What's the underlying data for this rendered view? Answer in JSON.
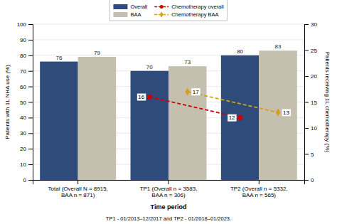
{
  "chart_data": {
    "type": "bar",
    "categories": [
      "Total (Overall N = 8915,\nBAA n = 871)",
      "TP1 (Overall n = 3583,\nBAA n = 306)",
      "TP2 (Overall n = 5332,\nBAA n = 565)"
    ],
    "xlabel": "Time period",
    "ylabel": "Patients with 1L NHA use (%)",
    "y2label": "Patients receiving 1L chemotherapy (%)",
    "ylim": [
      0,
      100
    ],
    "yticks": [
      0,
      10,
      20,
      30,
      40,
      50,
      60,
      70,
      80,
      90,
      100
    ],
    "y2lim": [
      0,
      30
    ],
    "y2ticks": [
      0,
      5,
      10,
      15,
      20,
      25,
      30
    ],
    "grid": true,
    "legend": "top",
    "data_labels": true,
    "series": [
      {
        "name": "Overall",
        "type": "bar",
        "color": "#2E4B7A",
        "values": [
          76,
          70,
          80
        ]
      },
      {
        "name": "BAA",
        "type": "bar",
        "color": "#C5BFB0",
        "values": [
          79,
          73,
          83
        ]
      },
      {
        "name": "Chemotherapy overall",
        "type": "line",
        "axis": "y2",
        "color": "#CC0000",
        "line_style": "dashed",
        "marker": "circle",
        "values": [
          null,
          16,
          12
        ]
      },
      {
        "name": "Chemotherapy BAA",
        "type": "line",
        "axis": "y2",
        "color": "#D4A017",
        "line_style": "dashed",
        "marker": "diamond",
        "values": [
          null,
          17,
          13
        ]
      }
    ],
    "footnote": "TP1 - 01/2013–12/2017 and TP2 - 01/2018–01/2023."
  }
}
